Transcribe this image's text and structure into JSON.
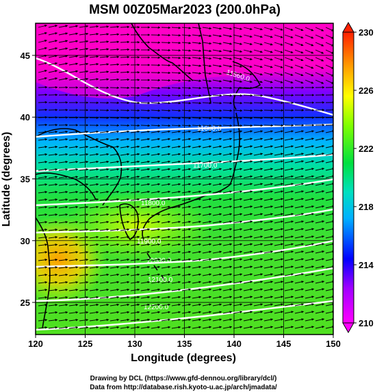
{
  "title": "MSM 00Z05Mar2023 (200.0hPa)",
  "map": {
    "x_label": "Longitude (degrees)",
    "y_label": "Latitude  (degrees)",
    "lon_range": [
      120,
      150
    ],
    "lat_range": [
      22.4,
      47.6
    ],
    "lon_ticks": [
      120,
      125,
      130,
      135,
      140,
      145,
      150
    ],
    "lat_ticks": [
      25,
      30,
      35,
      40,
      45
    ],
    "grid": true,
    "field": "temperature shading with wind arrows and geopotential height contours"
  },
  "colorbar": {
    "min": 210,
    "max": 230,
    "ticks": [
      210,
      214,
      218,
      222,
      226,
      230
    ],
    "colors": [
      "#ff00ff",
      "#0000ff",
      "#00c8ff",
      "#00e060",
      "#a0ff00",
      "#ffff00",
      "#ffa000",
      "#ff2000"
    ]
  },
  "contours": [
    {
      "label": "11560.0"
    },
    {
      "label": "11600.0"
    },
    {
      "label": "11700.0"
    },
    {
      "label": "11800.0"
    },
    {
      "label": "11900.0"
    },
    {
      "label": "12000.0"
    },
    {
      "label": "12100.0"
    },
    {
      "label": "12200.0"
    }
  ],
  "credits": {
    "line1": "Drawing by DCL (https://www.gfd-dennou.org/library/dcl/)",
    "line2": "Data from http://database.rish.kyoto-u.ac.jp/arch/jmadata/"
  }
}
